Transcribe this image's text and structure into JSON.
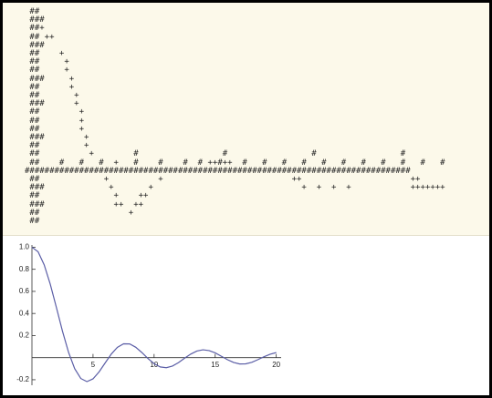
{
  "ascii_plot": {
    "lines": [
      " ##",
      " ###",
      " ##+",
      " ## ++",
      " ###",
      " ##    +",
      " ##     +",
      " ##     +",
      " ###     +",
      " ##      +",
      " ##       +",
      " ###      +",
      " ##        +",
      " ##        +",
      " ##        +",
      " ###        +",
      " ##         +",
      " ##          +        #                 #                 #                 #",
      " ##    #   #   #  +   #    #    #  # ++#++  #   #   #   #   #   #   #   #   #   #   #",
      "##############################################################################",
      " ##             +          +                          ++                      ++                 ++",
      " ###             +       +                              +  +  +  +            +++++++",
      " ##               +    ++",
      " ###              ++  ++",
      " ##                  +",
      " ##"
    ]
  },
  "chart_data": {
    "type": "line",
    "x": [
      0,
      0.5,
      1,
      1.5,
      2,
      2.5,
      3,
      3.5,
      4,
      4.5,
      5,
      5.5,
      6,
      6.5,
      7,
      7.5,
      8,
      8.5,
      9,
      9.5,
      10,
      10.5,
      11,
      11.5,
      12,
      12.5,
      13,
      13.5,
      14,
      14.5,
      15,
      15.5,
      16,
      16.5,
      17,
      17.5,
      18,
      18.5,
      19,
      19.5,
      20
    ],
    "series": [
      {
        "color": "#5b5ea6",
        "values": [
          1,
          0.959,
          0.841,
          0.665,
          0.455,
          0.239,
          0.047,
          -0.1,
          -0.189,
          -0.217,
          -0.192,
          -0.128,
          -0.047,
          0.033,
          0.094,
          0.125,
          0.124,
          0.094,
          0.046,
          -0.008,
          -0.054,
          -0.084,
          -0.091,
          -0.076,
          -0.045,
          -0.005,
          0.032,
          0.06,
          0.071,
          0.064,
          0.043,
          0.013,
          -0.018,
          -0.043,
          -0.057,
          -0.056,
          -0.042,
          -0.018,
          0.008,
          0.031,
          0.046
        ]
      }
    ],
    "xlim": [
      0,
      20.4
    ],
    "ylim": [
      -0.25,
      1.02
    ],
    "xticks": [
      5,
      10,
      15,
      20
    ],
    "yticks": [
      -0.2,
      0.2,
      0.4,
      0.6,
      0.8,
      {
        "value": 1,
        "label": "1.0"
      }
    ]
  }
}
